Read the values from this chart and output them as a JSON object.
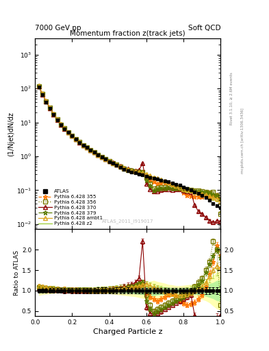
{
  "title_top_left": "7000 GeV pp",
  "title_top_right": "Soft QCD",
  "main_title": "Momentum fraction z(track jets)",
  "ylabel_main": "(1/Njet)dN/dz",
  "ylabel_ratio": "Ratio to ATLAS",
  "xlabel": "Charged Particle z",
  "right_label_top": "Rivet 3.1.10, ≥ 2.6M events",
  "right_label_bottom": "mcplots.cern.ch [arXiv:1306.3436]",
  "watermark": "ATLAS_2011_I919017",
  "xlim": [
    0,
    1.0
  ],
  "ylim_main": [
    0.007,
    3000
  ],
  "ylim_ratio": [
    0.38,
    2.5
  ],
  "ratio_yticks": [
    0.5,
    1.0,
    1.5,
    2.0
  ],
  "z_values": [
    0.02,
    0.04,
    0.06,
    0.08,
    0.1,
    0.12,
    0.14,
    0.16,
    0.18,
    0.2,
    0.22,
    0.24,
    0.26,
    0.28,
    0.3,
    0.32,
    0.34,
    0.36,
    0.38,
    0.4,
    0.42,
    0.44,
    0.46,
    0.48,
    0.5,
    0.52,
    0.54,
    0.56,
    0.58,
    0.6,
    0.62,
    0.64,
    0.66,
    0.68,
    0.7,
    0.72,
    0.74,
    0.76,
    0.78,
    0.8,
    0.82,
    0.84,
    0.86,
    0.88,
    0.9,
    0.92,
    0.94,
    0.96,
    0.98,
    1.0
  ],
  "atlas_y": [
    110,
    65,
    40,
    26,
    17,
    12,
    8.5,
    6.5,
    5.0,
    4.0,
    3.2,
    2.6,
    2.1,
    1.8,
    1.5,
    1.3,
    1.1,
    0.95,
    0.82,
    0.7,
    0.62,
    0.55,
    0.48,
    0.42,
    0.38,
    0.35,
    0.32,
    0.3,
    0.28,
    0.26,
    0.24,
    0.22,
    0.21,
    0.2,
    0.19,
    0.18,
    0.16,
    0.15,
    0.14,
    0.12,
    0.11,
    0.1,
    0.09,
    0.08,
    0.07,
    0.06,
    0.05,
    0.04,
    0.035,
    0.03
  ],
  "atlas_yerr": [
    5,
    3,
    2,
    1.5,
    1,
    0.7,
    0.5,
    0.4,
    0.3,
    0.25,
    0.2,
    0.17,
    0.14,
    0.12,
    0.1,
    0.09,
    0.08,
    0.07,
    0.06,
    0.05,
    0.045,
    0.04,
    0.035,
    0.03,
    0.028,
    0.025,
    0.022,
    0.02,
    0.018,
    0.017,
    0.016,
    0.015,
    0.014,
    0.013,
    0.012,
    0.011,
    0.01,
    0.009,
    0.009,
    0.008,
    0.007,
    0.007,
    0.006,
    0.006,
    0.005,
    0.005,
    0.004,
    0.003,
    0.003,
    0.003
  ],
  "series": [
    {
      "label": "Pythia 6.428 355",
      "color": "#FF7700",
      "linestyle": "--",
      "marker": "*",
      "markersize": 5,
      "ratio": [
        1.1,
        1.08,
        1.07,
        1.06,
        1.05,
        1.04,
        1.03,
        1.03,
        1.02,
        1.02,
        1.02,
        1.02,
        1.01,
        1.01,
        1.01,
        1.01,
        1.01,
        1.02,
        1.02,
        1.03,
        1.03,
        1.04,
        1.05,
        1.06,
        1.07,
        1.08,
        1.09,
        1.12,
        1.15,
        0.95,
        0.85,
        0.8,
        0.75,
        0.8,
        0.85,
        0.9,
        0.92,
        0.88,
        0.75,
        0.7,
        0.65,
        0.68,
        0.72,
        0.8,
        0.9,
        1.1,
        1.4,
        1.7,
        2.1,
        1.85
      ]
    },
    {
      "label": "Pythia 6.428 356",
      "color": "#7B7B00",
      "linestyle": ":",
      "marker": "s",
      "markersize": 4,
      "ratio": [
        1.08,
        1.06,
        1.05,
        1.04,
        1.03,
        1.03,
        1.02,
        1.02,
        1.01,
        1.01,
        1.01,
        1.01,
        1.01,
        1.0,
        1.0,
        1.0,
        1.0,
        1.01,
        1.01,
        1.02,
        1.02,
        1.03,
        1.04,
        1.05,
        1.06,
        1.08,
        1.1,
        1.15,
        1.2,
        0.9,
        0.65,
        0.5,
        0.55,
        0.6,
        0.65,
        0.7,
        0.75,
        0.8,
        0.85,
        0.9,
        0.95,
        1.0,
        1.1,
        1.2,
        1.3,
        1.5,
        1.7,
        2.2,
        2.0,
        0.65
      ]
    },
    {
      "label": "Pythia 6.428 370",
      "color": "#8B0000",
      "linestyle": "-",
      "marker": "^",
      "markersize": 4,
      "ratio": [
        1.05,
        1.04,
        1.03,
        1.02,
        1.01,
        1.01,
        1.01,
        1.0,
        1.0,
        1.0,
        1.0,
        1.0,
        1.0,
        1.0,
        1.0,
        1.0,
        1.01,
        1.01,
        1.02,
        1.03,
        1.04,
        1.05,
        1.07,
        1.09,
        1.12,
        1.15,
        1.2,
        1.3,
        2.2,
        0.6,
        0.45,
        0.42,
        0.45,
        0.5,
        0.55,
        0.6,
        0.65,
        0.7,
        0.75,
        0.8,
        0.85,
        0.9,
        0.4,
        0.3,
        0.28,
        0.26,
        0.25,
        0.28,
        0.35,
        0.4
      ]
    },
    {
      "label": "Pythia 6.428 379",
      "color": "#5A7A00",
      "linestyle": "-.",
      "marker": "*",
      "markersize": 5,
      "ratio": [
        1.09,
        1.07,
        1.06,
        1.05,
        1.04,
        1.03,
        1.03,
        1.02,
        1.02,
        1.01,
        1.01,
        1.01,
        1.01,
        1.01,
        1.0,
        1.0,
        1.01,
        1.01,
        1.02,
        1.02,
        1.03,
        1.04,
        1.05,
        1.07,
        1.09,
        1.11,
        1.13,
        1.18,
        1.2,
        0.75,
        0.55,
        0.45,
        0.5,
        0.55,
        0.6,
        0.65,
        0.7,
        0.75,
        0.8,
        0.85,
        0.9,
        0.95,
        1.05,
        1.15,
        1.25,
        1.45,
        1.65,
        1.85,
        2.0,
        1.8
      ]
    },
    {
      "label": "Pythia 6.428 ambt1",
      "color": "#DAA520",
      "linestyle": "-",
      "marker": "^",
      "markersize": 4,
      "ratio": [
        1.12,
        1.1,
        1.08,
        1.06,
        1.05,
        1.04,
        1.03,
        1.03,
        1.02,
        1.02,
        1.02,
        1.02,
        1.02,
        1.01,
        1.01,
        1.01,
        1.01,
        1.02,
        1.02,
        1.03,
        1.03,
        1.04,
        1.05,
        1.06,
        1.07,
        1.08,
        1.1,
        1.12,
        1.14,
        1.16,
        1.12,
        1.08,
        1.05,
        1.02,
        0.98,
        0.95,
        0.92,
        0.9,
        0.88,
        0.9,
        0.92,
        0.95,
        1.0,
        1.05,
        1.1,
        1.2,
        1.35,
        1.5,
        1.6,
        1.55
      ]
    },
    {
      "label": "Pythia 6.428 z2",
      "color": "#9ACD32",
      "linestyle": "-",
      "marker": null,
      "markersize": 0,
      "ratio": [
        1.1,
        1.08,
        1.07,
        1.06,
        1.05,
        1.04,
        1.03,
        1.02,
        1.02,
        1.01,
        1.01,
        1.01,
        1.01,
        1.01,
        1.01,
        1.01,
        1.02,
        1.02,
        1.03,
        1.04,
        1.05,
        1.06,
        1.07,
        1.08,
        1.09,
        1.1,
        1.11,
        1.13,
        1.15,
        1.16,
        1.13,
        1.1,
        1.07,
        1.05,
        1.02,
        1.0,
        0.98,
        0.97,
        0.98,
        1.0,
        1.02,
        1.04,
        1.07,
        1.1,
        1.15,
        1.2,
        1.28,
        1.38,
        1.45,
        1.42
      ]
    }
  ],
  "band_outer_color": "#FFFF80",
  "band_inner_color": "#90EE90",
  "band_alpha": 0.6,
  "band_outer": [
    0.12,
    0.1,
    0.09,
    0.08,
    0.07,
    0.06,
    0.06,
    0.05,
    0.05,
    0.05,
    0.05,
    0.05,
    0.05,
    0.05,
    0.05,
    0.05,
    0.06,
    0.06,
    0.07,
    0.08,
    0.09,
    0.1,
    0.11,
    0.12,
    0.13,
    0.14,
    0.15,
    0.17,
    0.19,
    0.21,
    0.23,
    0.25,
    0.22,
    0.2,
    0.18,
    0.15,
    0.14,
    0.12,
    0.12,
    0.13,
    0.14,
    0.15,
    0.17,
    0.19,
    0.22,
    0.25,
    0.3,
    0.38,
    0.45,
    0.48
  ],
  "band_inner": [
    0.06,
    0.05,
    0.04,
    0.04,
    0.03,
    0.03,
    0.03,
    0.02,
    0.02,
    0.02,
    0.02,
    0.02,
    0.02,
    0.02,
    0.02,
    0.02,
    0.03,
    0.03,
    0.03,
    0.04,
    0.04,
    0.05,
    0.05,
    0.06,
    0.06,
    0.07,
    0.08,
    0.09,
    0.1,
    0.11,
    0.12,
    0.13,
    0.11,
    0.1,
    0.09,
    0.08,
    0.07,
    0.06,
    0.06,
    0.07,
    0.07,
    0.08,
    0.09,
    0.1,
    0.12,
    0.14,
    0.17,
    0.2,
    0.25,
    0.26
  ],
  "background_color": "white"
}
